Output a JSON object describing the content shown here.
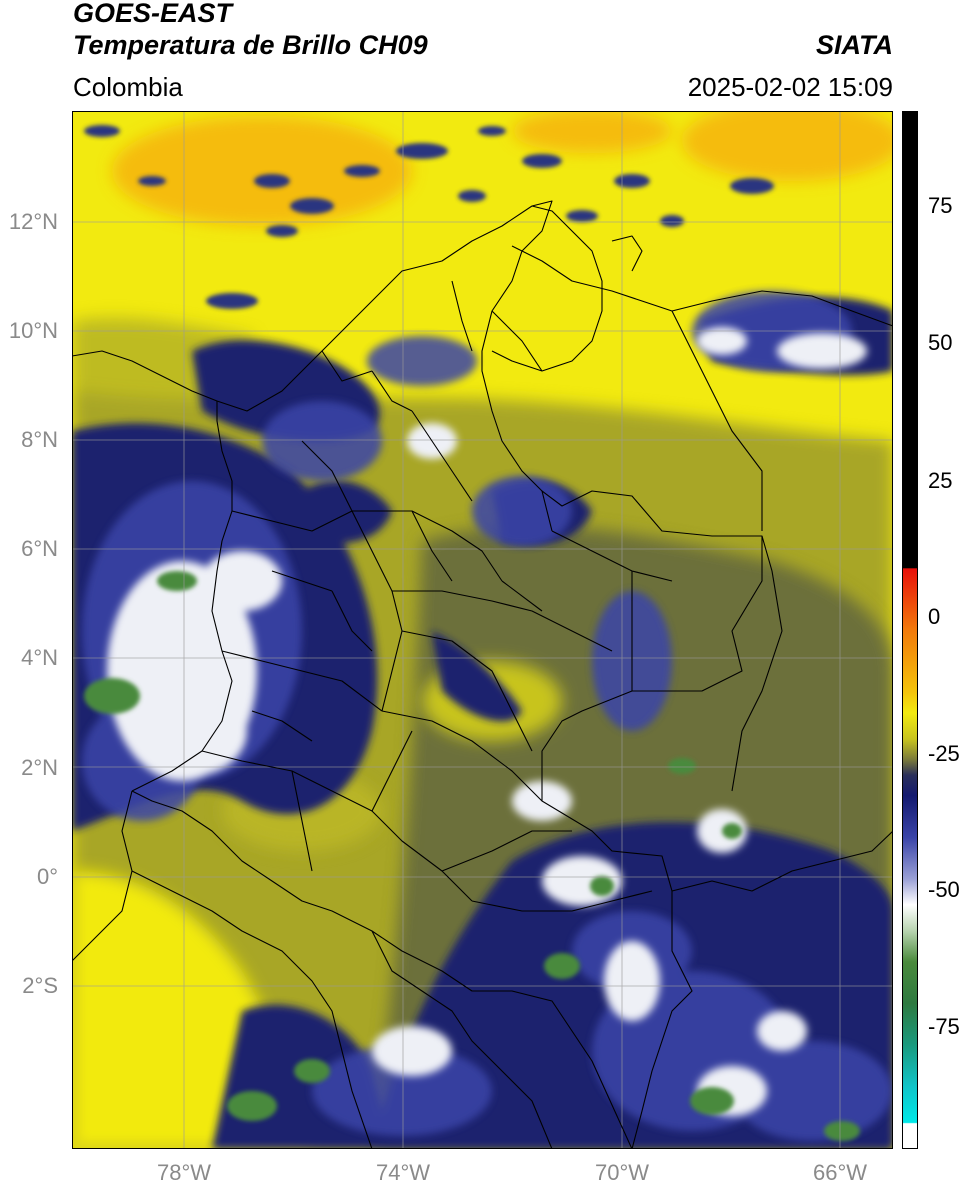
{
  "header": {
    "satellite": "GOES-EAST",
    "product": "Temperatura de Brillo CH09",
    "org": "SIATA",
    "region": "Colombia",
    "timestamp": "2025-02-02 15:09"
  },
  "map": {
    "lat_labels": [
      "12°N",
      "10°N",
      "8°N",
      "6°N",
      "4°N",
      "2°N",
      "0°",
      "2°S"
    ],
    "lon_labels": [
      "78°W",
      "74°W",
      "70°W",
      "66°W"
    ],
    "colors": {
      "warm": "#f2ea10",
      "olive": "#a8a628",
      "dark_olive": "#6c6f3a",
      "navy": "#1c236e",
      "blue": "#3a44a8",
      "white": "#eef0f6",
      "green": "#4a8a3c",
      "orange": "#f6b410",
      "border": "#000000",
      "grid": "#9a9a9a"
    }
  },
  "colorbar": {
    "tick_labels": [
      "75",
      "50",
      "25",
      "0",
      "-25",
      "-50",
      "-75"
    ]
  }
}
